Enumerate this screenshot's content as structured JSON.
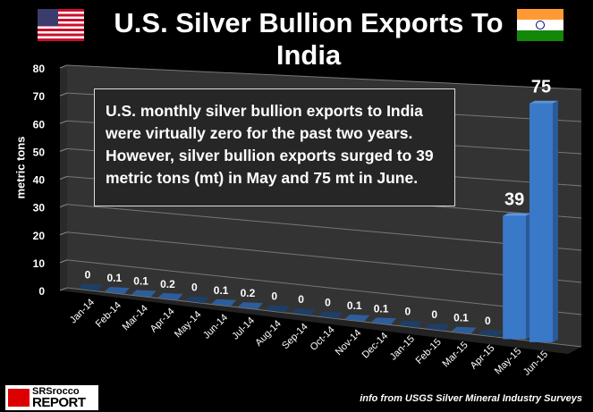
{
  "title": "U.S. Silver Bullion Exports To India",
  "note": "U.S. monthly silver bullion exports to India were virtually zero for the past two years. However, silver bullion exports surged to 39 metric tons (mt) in May and 75 mt in June.",
  "source": "info from USGS Silver Mineral Industry Surveys",
  "logo": {
    "line1": "SRSrocco",
    "line2": "REPORT"
  },
  "chart_data": {
    "type": "bar",
    "title": "U.S. Silver Bullion Exports To India",
    "xlabel": "",
    "ylabel": "metric tons",
    "ylim": [
      0,
      80
    ],
    "yticks": [
      0,
      10,
      20,
      30,
      40,
      50,
      60,
      70,
      80
    ],
    "grid": true,
    "categories": [
      "Jan-14",
      "Feb-14",
      "Mar-14",
      "Apr-14",
      "May-14",
      "Jun-14",
      "Jul-14",
      "Aug-14",
      "Sep-14",
      "Oct-14",
      "Nov-14",
      "Dec-14",
      "Jan-15",
      "Feb-15",
      "Mar-15",
      "Apr-15",
      "May-15",
      "Jun-15"
    ],
    "values": [
      0,
      0.1,
      0.1,
      0.2,
      0,
      0.1,
      0.2,
      0,
      0,
      0,
      0.1,
      0.1,
      0,
      0,
      0.1,
      0,
      39,
      75
    ],
    "data_labels": [
      "0",
      "0.1",
      "0.1",
      "0.2",
      "0",
      "0.1",
      "0.2",
      "0",
      "0",
      "0",
      "0.1",
      "0.1",
      "0",
      "0",
      "0.1",
      "0",
      "39",
      "75"
    ],
    "bar_color": "#3a78c8"
  }
}
